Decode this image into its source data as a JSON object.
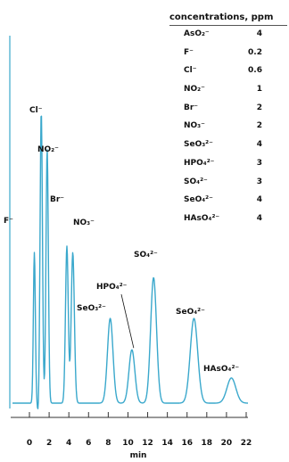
{
  "concentrations_header": "concentrations, ppm",
  "concentrations": [
    {
      "ion": "AsO₂⁻",
      "value": "4"
    },
    {
      "ion": "F⁻",
      "value": "0.2"
    },
    {
      "ion": "Cl⁻",
      "value": "0.6"
    },
    {
      "ion": "NO₂⁻",
      "value": "1"
    },
    {
      "ion": "Br⁻",
      "value": "2"
    },
    {
      "ion": "NO₃⁻",
      "value": "2"
    },
    {
      "ion": "SeO₃²⁻",
      "value": "4"
    },
    {
      "ion": "HPO₄²⁻",
      "value": "3"
    },
    {
      "ion": "SO₄²⁻",
      "value": "3"
    },
    {
      "ion": "SeO₄²⁻",
      "value": "4"
    },
    {
      "ion": "HAsO₄²⁻",
      "value": "4"
    }
  ],
  "chart_data": {
    "type": "line",
    "xlabel": "min",
    "xlim": [
      0,
      22
    ],
    "x_ticks": [
      0,
      2,
      4,
      6,
      8,
      10,
      12,
      14,
      16,
      18,
      20,
      22
    ],
    "y_axis_labels": false,
    "grid": false,
    "line_color": "#3aa8cc",
    "peaks": [
      {
        "label": "F⁻",
        "time": 0.5,
        "height": 0.48
      },
      {
        "label": "Cl⁻",
        "time": 1.2,
        "height": 0.93
      },
      {
        "label": "NO₂⁻",
        "time": 1.8,
        "height": 0.81
      },
      {
        "label": "Br⁻",
        "time": 3.8,
        "height": 0.5
      },
      {
        "label": "NO₃⁻",
        "time": 4.4,
        "height": 0.48
      },
      {
        "label": "SeO₃²⁻",
        "time": 8.2,
        "height": 0.27
      },
      {
        "label": "HPO₄²⁻",
        "time": 10.4,
        "height": 0.17
      },
      {
        "label": "SO₄²⁻",
        "time": 12.6,
        "height": 0.4
      },
      {
        "label": "SeO₄²⁻",
        "time": 16.7,
        "height": 0.27
      },
      {
        "label": "HAsO₄²⁻",
        "time": 20.5,
        "height": 0.08
      }
    ]
  }
}
